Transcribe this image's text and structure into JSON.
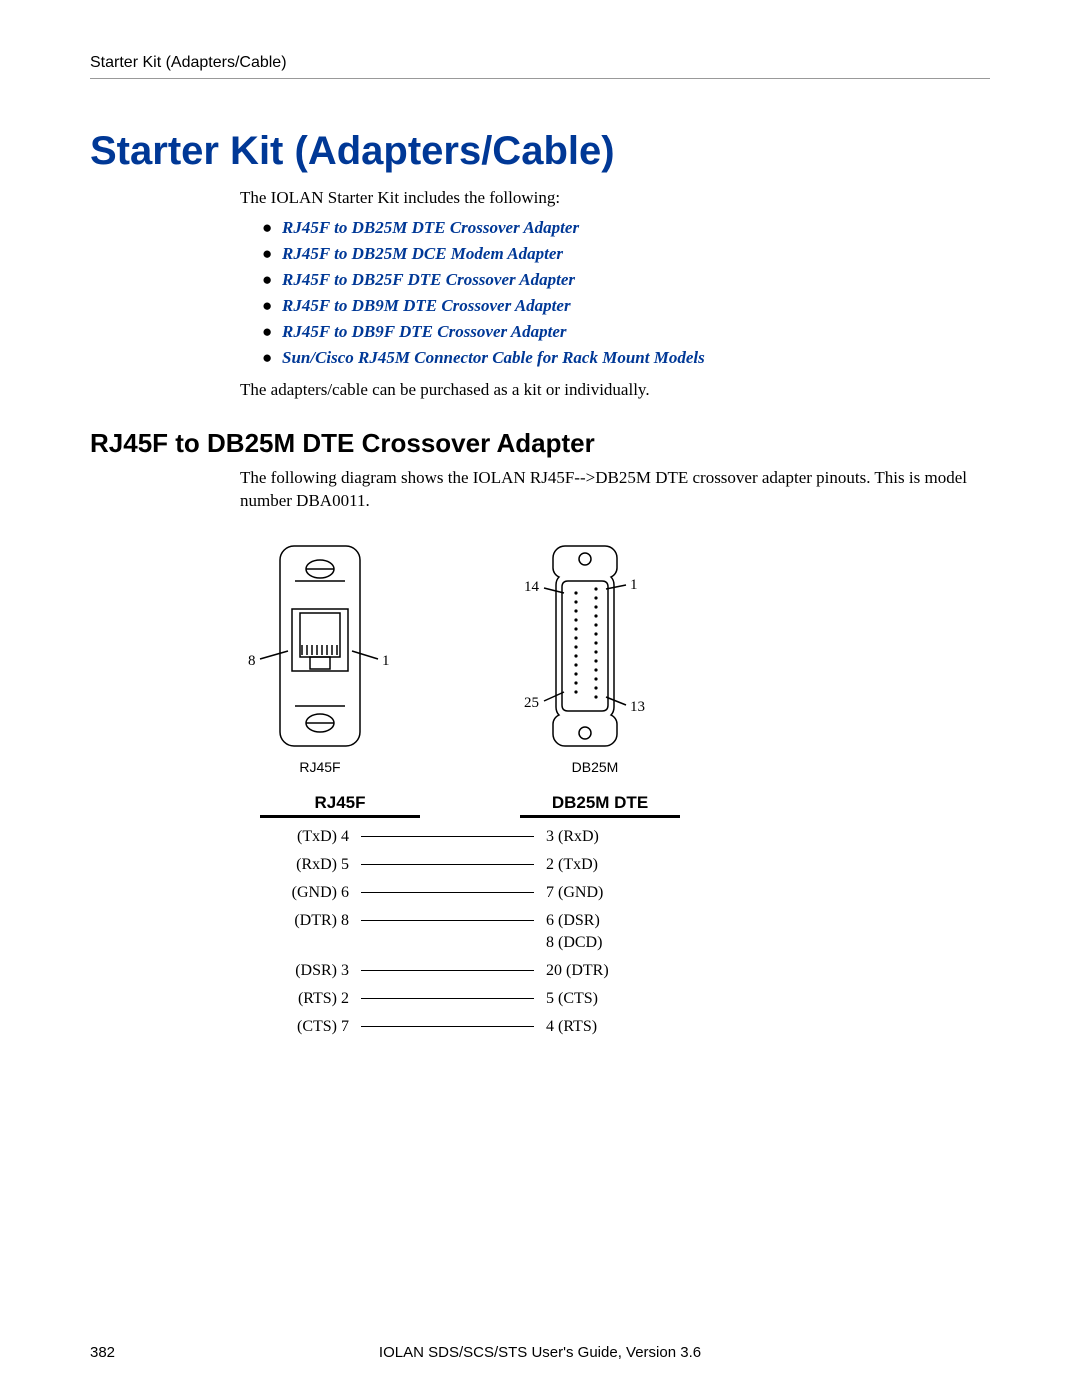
{
  "colors": {
    "accent": "#003896"
  },
  "header": {
    "running": "Starter Kit (Adapters/Cable)"
  },
  "title": "Starter Kit (Adapters/Cable)",
  "intro": "The IOLAN Starter Kit includes the following:",
  "links": [
    "RJ45F to DB25M DTE Crossover Adapter",
    "RJ45F to DB25M DCE Modem Adapter",
    "RJ45F to DB25F DTE Crossover Adapter",
    "RJ45F to DB9M DTE Crossover Adapter",
    "RJ45F to DB9F DTE Crossover Adapter",
    "Sun/Cisco RJ45M Connector Cable for Rack Mount Models"
  ],
  "after_list": "The adapters/cable can be purchased as a kit or individually.",
  "section": {
    "heading": "RJ45F to DB25M DTE Crossover Adapter",
    "body": "The following diagram shows the IOLAN RJ45F-->DB25M DTE crossover adapter pinouts. This is model number DBA0011."
  },
  "diagrams": {
    "rj45f": {
      "caption": "RJ45F",
      "pin_left_label": "8",
      "pin_right_label": "1"
    },
    "db25m": {
      "caption": "DB25M",
      "labels": {
        "tl": "14",
        "tr": "1",
        "bl": "25",
        "br": "13"
      }
    }
  },
  "pinout": {
    "head_left": "RJ45F",
    "head_right": "DB25M DTE",
    "rows": [
      {
        "left": "(TxD) 4",
        "right": "3 (RxD)"
      },
      {
        "left": "(RxD) 5",
        "right": "2 (TxD)"
      },
      {
        "left": "(GND) 6",
        "right": "7 (GND)"
      },
      {
        "left": "(DTR) 8",
        "right": "6 (DSR)",
        "extra": "8 (DCD)"
      },
      {
        "left": "(DSR) 3",
        "right": "20 (DTR)"
      },
      {
        "left": "(RTS) 2",
        "right": "5 (CTS)"
      },
      {
        "left": "(CTS) 7",
        "right": "4 (RTS)"
      }
    ]
  },
  "footer": {
    "page": "382",
    "center": "IOLAN SDS/SCS/STS User's Guide, Version 3.6"
  }
}
